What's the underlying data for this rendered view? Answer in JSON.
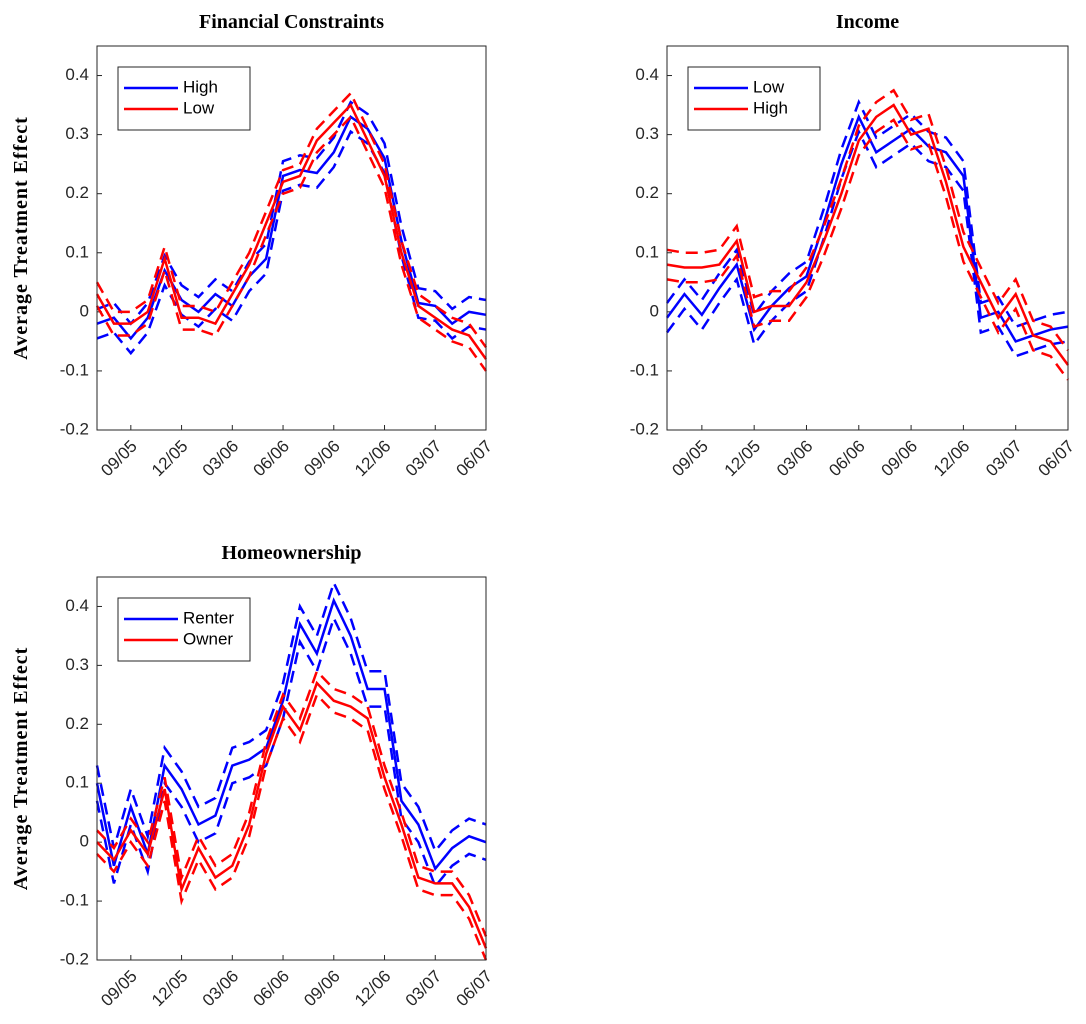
{
  "chart_data": [
    {
      "type": "line",
      "title": "Financial Constraints",
      "ylabel": "Average Treatment Effect",
      "categories": [
        null,
        null,
        "09/05",
        null,
        null,
        "12/05",
        null,
        null,
        "03/06",
        null,
        null,
        "06/06",
        null,
        null,
        "09/06",
        null,
        null,
        "12/06",
        null,
        null,
        "03/07",
        null,
        null,
        "06/07"
      ],
      "ylim": [
        -0.2,
        0.45
      ],
      "yticks": [
        -0.2,
        -0.1,
        0,
        0.1,
        0.2,
        0.3,
        0.4
      ],
      "legend": "northwest",
      "series": [
        {
          "name": "High",
          "color": "#0000ff",
          "values": [
            -0.02,
            -0.01,
            -0.045,
            -0.01,
            0.07,
            0.02,
            0.0,
            0.03,
            0.01,
            0.06,
            0.09,
            0.23,
            0.24,
            0.235,
            0.27,
            0.33,
            0.31,
            0.26,
            0.12,
            0.015,
            0.01,
            -0.02,
            0.0,
            -0.005
          ],
          "lower": [
            -0.045,
            -0.035,
            -0.07,
            -0.035,
            0.045,
            -0.005,
            -0.025,
            0.005,
            -0.015,
            0.035,
            0.065,
            0.205,
            0.215,
            0.21,
            0.245,
            0.305,
            0.285,
            0.235,
            0.095,
            -0.01,
            -0.015,
            -0.045,
            -0.025,
            -0.03
          ],
          "upper": [
            0.005,
            0.015,
            -0.02,
            0.015,
            0.095,
            0.045,
            0.025,
            0.055,
            0.035,
            0.085,
            0.115,
            0.255,
            0.265,
            0.26,
            0.295,
            0.355,
            0.335,
            0.285,
            0.145,
            0.04,
            0.035,
            0.005,
            0.025,
            0.02
          ]
        },
        {
          "name": "Low",
          "color": "#ff0000",
          "values": [
            0.03,
            -0.02,
            -0.02,
            0.0,
            0.09,
            -0.01,
            -0.01,
            -0.02,
            0.03,
            0.08,
            0.15,
            0.22,
            0.23,
            0.29,
            0.32,
            0.35,
            0.29,
            0.23,
            0.1,
            0.01,
            -0.01,
            -0.03,
            -0.04,
            -0.08
          ],
          "lower": [
            0.01,
            -0.04,
            -0.04,
            -0.02,
            0.07,
            -0.03,
            -0.03,
            -0.04,
            0.01,
            0.06,
            0.13,
            0.2,
            0.21,
            0.27,
            0.3,
            0.33,
            0.27,
            0.21,
            0.08,
            -0.01,
            -0.03,
            -0.05,
            -0.06,
            -0.1
          ],
          "upper": [
            0.05,
            0,
            0,
            0.02,
            0.11,
            0.01,
            0.01,
            0,
            0.05,
            0.1,
            0.17,
            0.24,
            0.25,
            0.31,
            0.34,
            0.37,
            0.31,
            0.25,
            0.12,
            0.03,
            0.01,
            -0.01,
            -0.02,
            -0.06
          ]
        }
      ]
    },
    {
      "type": "line",
      "title": "Income",
      "categories": [
        null,
        null,
        "09/05",
        null,
        null,
        "12/05",
        null,
        null,
        "03/06",
        null,
        null,
        "06/06",
        null,
        null,
        "09/06",
        null,
        null,
        "12/06",
        null,
        null,
        "03/07",
        null,
        null,
        "06/07"
      ],
      "ylim": [
        -0.2,
        0.45
      ],
      "yticks": [
        -0.2,
        -0.1,
        0,
        0.1,
        0.2,
        0.3,
        0.4
      ],
      "legend": "northwest",
      "series": [
        {
          "name": "Low",
          "color": "#0000ff",
          "values": [
            -0.01,
            0.03,
            -0.005,
            0.04,
            0.08,
            -0.03,
            0.01,
            0.04,
            0.06,
            0.15,
            0.25,
            0.33,
            0.27,
            0.29,
            0.31,
            0.28,
            0.27,
            0.23,
            -0.01,
            0.0,
            -0.05,
            -0.04,
            -0.03,
            -0.025
          ],
          "lower": [
            -0.035,
            0.005,
            -0.03,
            0.015,
            0.055,
            -0.055,
            -0.015,
            0.015,
            0.035,
            0.125,
            0.225,
            0.305,
            0.245,
            0.265,
            0.285,
            0.255,
            0.245,
            0.205,
            -0.035,
            -0.025,
            -0.075,
            -0.065,
            -0.055,
            -0.05
          ],
          "upper": [
            0.015,
            0.055,
            0.02,
            0.065,
            0.105,
            -0.005,
            0.035,
            0.065,
            0.085,
            0.175,
            0.275,
            0.355,
            0.295,
            0.315,
            0.335,
            0.305,
            0.295,
            0.255,
            0.015,
            0.025,
            -0.025,
            -0.015,
            -0.005,
            0
          ]
        },
        {
          "name": "High",
          "color": "#ff0000",
          "values": [
            0.08,
            0.075,
            0.075,
            0.08,
            0.12,
            0.0,
            0.01,
            0.01,
            0.05,
            0.12,
            0.2,
            0.29,
            0.33,
            0.35,
            0.3,
            0.31,
            0.22,
            0.11,
            0.05,
            -0.01,
            0.03,
            -0.04,
            -0.05,
            -0.09
          ],
          "lower": [
            0.055,
            0.05,
            0.05,
            0.055,
            0.095,
            -0.025,
            -0.015,
            -0.015,
            0.025,
            0.095,
            0.175,
            0.265,
            0.305,
            0.325,
            0.275,
            0.285,
            0.195,
            0.085,
            0.025,
            -0.035,
            0.005,
            -0.065,
            -0.075,
            -0.115
          ],
          "upper": [
            0.105,
            0.1,
            0.1,
            0.105,
            0.145,
            0.025,
            0.035,
            0.035,
            0.075,
            0.145,
            0.225,
            0.315,
            0.355,
            0.375,
            0.325,
            0.335,
            0.245,
            0.135,
            0.075,
            0.015,
            0.055,
            -0.015,
            -0.025,
            -0.065
          ]
        }
      ]
    },
    {
      "type": "line",
      "title": "Homeownership",
      "ylabel": "Average Treatment Effect",
      "categories": [
        null,
        null,
        "09/05",
        null,
        null,
        "12/05",
        null,
        null,
        "03/06",
        null,
        null,
        "06/06",
        null,
        null,
        "09/06",
        null,
        null,
        "12/06",
        null,
        null,
        "03/07",
        null,
        null,
        "06/07"
      ],
      "ylim": [
        -0.2,
        0.45
      ],
      "yticks": [
        -0.2,
        -0.1,
        0,
        0.1,
        0.2,
        0.3,
        0.4
      ],
      "legend": "northwest",
      "series": [
        {
          "name": "Renter",
          "color": "#0000ff",
          "values": [
            0.1,
            -0.04,
            0.06,
            -0.02,
            0.13,
            0.09,
            0.03,
            0.045,
            0.13,
            0.14,
            0.16,
            0.24,
            0.37,
            0.32,
            0.41,
            0.35,
            0.26,
            0.26,
            0.07,
            0.03,
            -0.045,
            -0.01,
            0.01,
            0.0
          ],
          "lower": [
            0.07,
            -0.07,
            0.03,
            -0.05,
            0.1,
            0.06,
            0,
            0.015,
            0.1,
            0.11,
            0.13,
            0.21,
            0.34,
            0.29,
            0.38,
            0.32,
            0.23,
            0.23,
            0.04,
            0,
            -0.075,
            -0.04,
            -0.02,
            -0.03
          ],
          "upper": [
            0.13,
            -0.01,
            0.09,
            0.01,
            0.16,
            0.12,
            0.06,
            0.075,
            0.16,
            0.17,
            0.19,
            0.27,
            0.4,
            0.35,
            0.44,
            0.38,
            0.29,
            0.29,
            0.1,
            0.06,
            -0.015,
            0.02,
            0.04,
            0.03
          ]
        },
        {
          "name": "Owner",
          "color": "#ff0000",
          "values": [
            0.0,
            -0.03,
            0.02,
            -0.02,
            0.09,
            -0.08,
            -0.01,
            -0.06,
            -0.04,
            0.03,
            0.15,
            0.23,
            0.19,
            0.27,
            0.24,
            0.23,
            0.21,
            0.11,
            0.03,
            -0.06,
            -0.07,
            -0.07,
            -0.11,
            -0.18
          ],
          "lower": [
            -0.02,
            -0.05,
            0,
            -0.04,
            0.07,
            -0.1,
            -0.03,
            -0.08,
            -0.06,
            0.01,
            0.13,
            0.21,
            0.17,
            0.25,
            0.22,
            0.21,
            0.19,
            0.09,
            0.01,
            -0.08,
            -0.09,
            -0.09,
            -0.13,
            -0.2
          ],
          "upper": [
            0.02,
            -0.01,
            0.04,
            0,
            0.11,
            -0.06,
            0.01,
            -0.04,
            -0.02,
            0.05,
            0.17,
            0.25,
            0.21,
            0.29,
            0.26,
            0.25,
            0.23,
            0.13,
            0.05,
            -0.04,
            -0.05,
            -0.05,
            -0.09,
            -0.16
          ]
        }
      ]
    }
  ]
}
